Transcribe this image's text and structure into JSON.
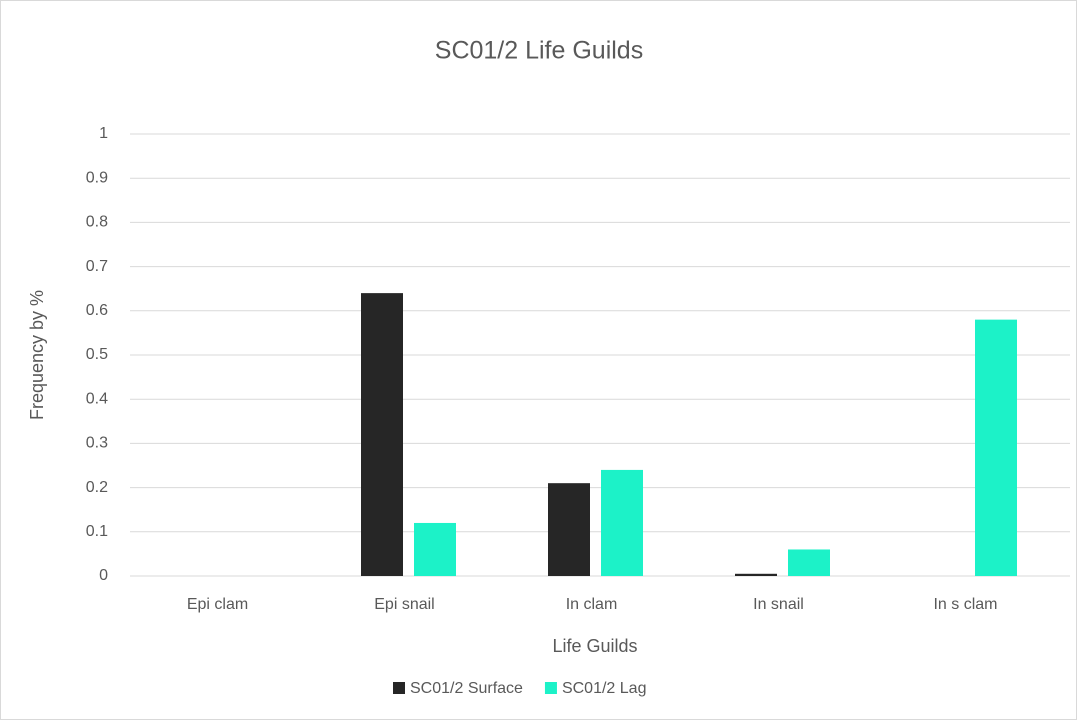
{
  "chart_data": {
    "type": "bar",
    "title": "SC01/2 Life Guilds",
    "x_label": "Life Guilds",
    "y_label": "Frequency by %",
    "categories": [
      "Epi clam",
      "Epi snail",
      "In clam",
      "In snail",
      "In s clam"
    ],
    "series": [
      {
        "name": "SC01/2 Surface",
        "color": "#262626",
        "values": [
          0,
          0.64,
          0.21,
          0.005,
          0
        ]
      },
      {
        "name": "SC01/2 Lag",
        "color": "#1cf2c8",
        "values": [
          0,
          0.12,
          0.24,
          0.06,
          0.58
        ]
      }
    ],
    "ylim": [
      0,
      1
    ],
    "yticks": [
      0,
      0.1,
      0.2,
      0.3,
      0.4,
      0.5,
      0.6,
      0.7,
      0.8,
      0.9,
      1
    ],
    "grid": true,
    "legend": "bottom"
  }
}
